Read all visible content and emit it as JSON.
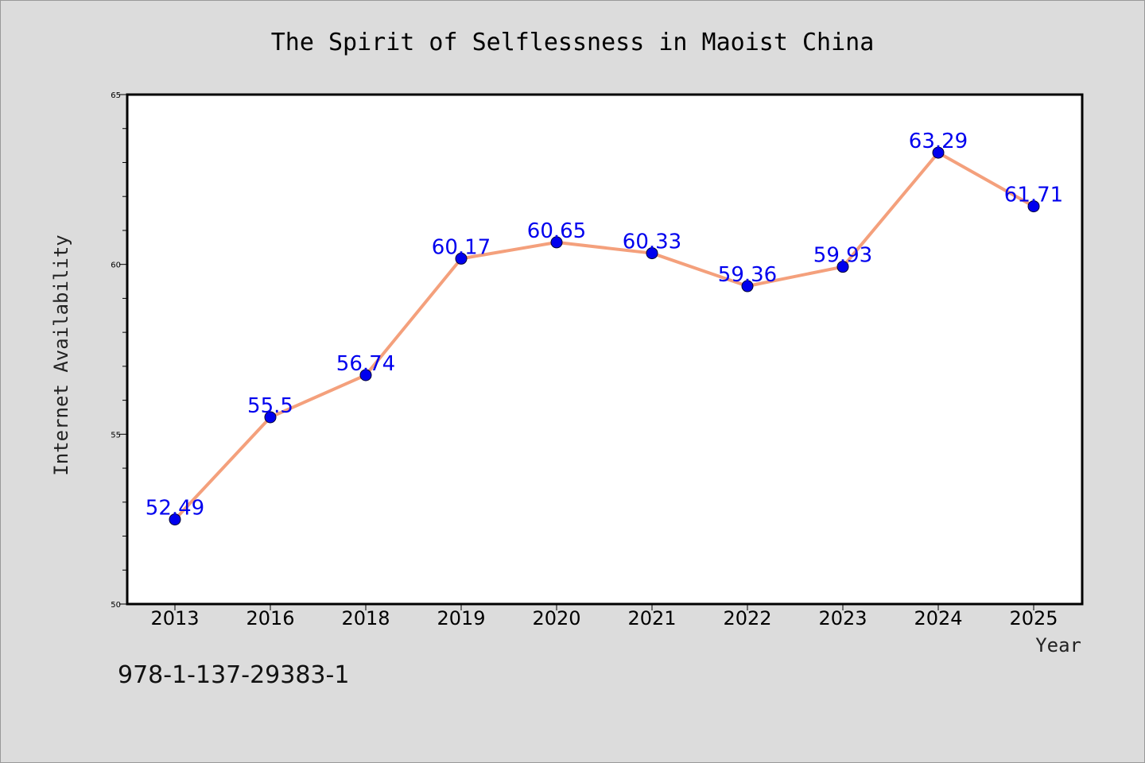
{
  "chart_data": {
    "type": "line",
    "title": "The Spirit of Selflessness in Maoist China",
    "xlabel": "Year",
    "ylabel": "Internet Availability",
    "categories": [
      "2013",
      "2016",
      "2018",
      "2019",
      "2020",
      "2021",
      "2022",
      "2023",
      "2024",
      "2025"
    ],
    "values": [
      52.49,
      55.5,
      56.74,
      60.17,
      60.65,
      60.33,
      59.36,
      59.93,
      63.29,
      61.71
    ],
    "data_labels": [
      "52.49",
      "55.5",
      "56.74",
      "60.17",
      "60.65",
      "60.33",
      "59.36",
      "59.93",
      "63.29",
      "61.71"
    ],
    "ylim": [
      50,
      65
    ],
    "yticks": [
      50,
      55,
      60,
      65
    ],
    "grid": false,
    "line_color": "#f4a07c",
    "marker_color": "#0000ee",
    "label_color": "#0000ee",
    "plot_background": "#ffffff",
    "page_background": "#dcdcdc"
  },
  "footer": {
    "isbn": "978-1-137-29383-1"
  }
}
